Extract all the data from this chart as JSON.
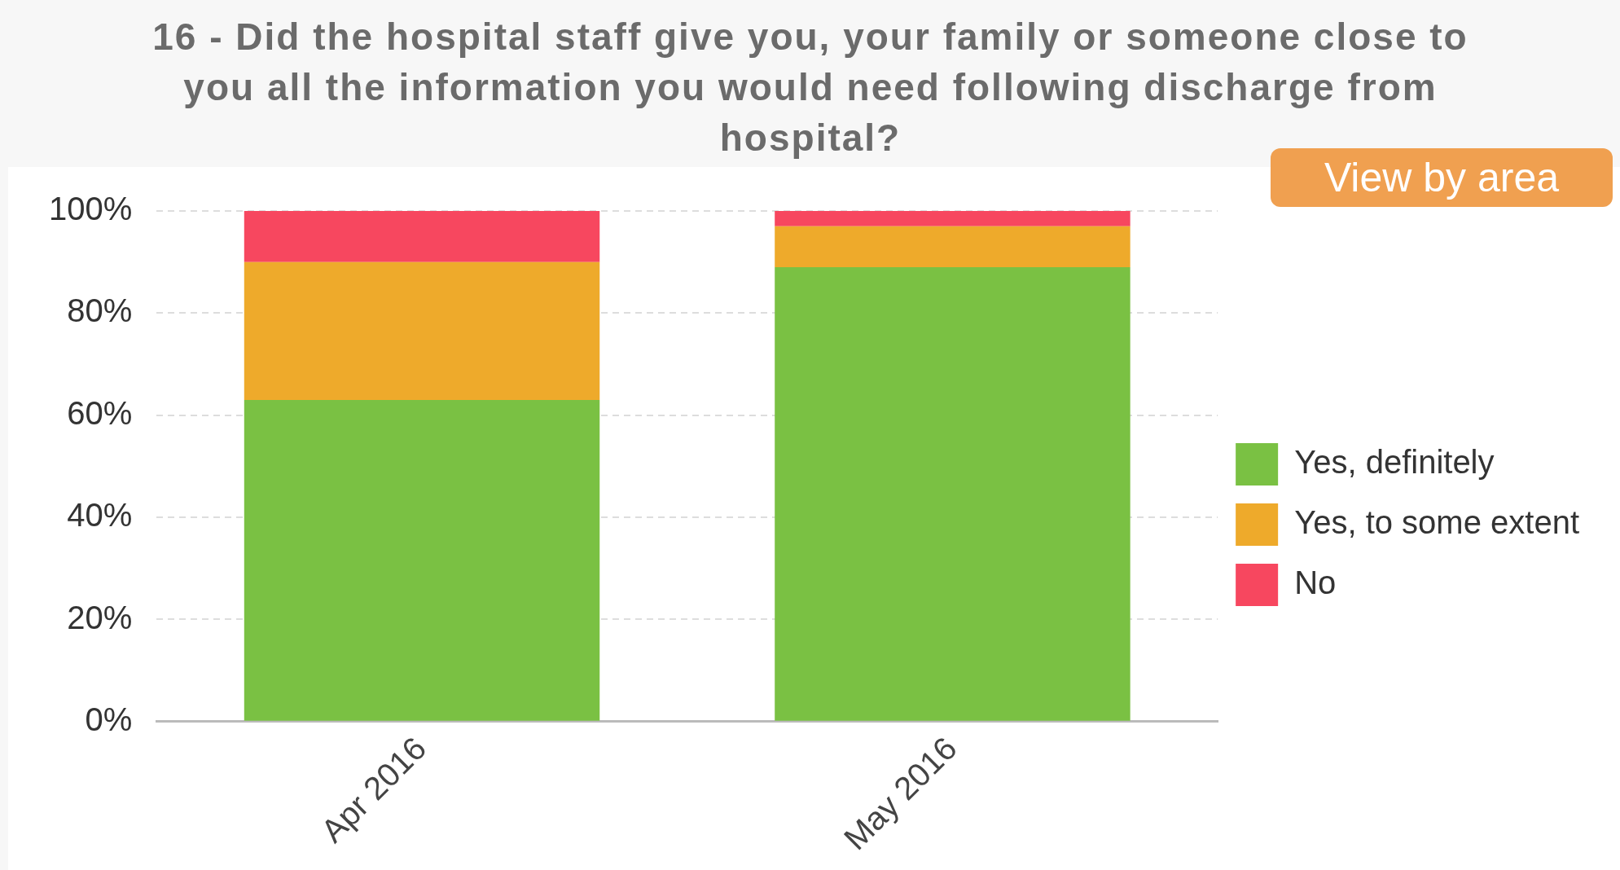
{
  "chart_data": {
    "type": "bar",
    "title": "16 - Did the hospital staff give you, your family or someone close to you all the information you would need following discharge from hospital?",
    "categories": [
      "Apr 2016",
      "May 2016"
    ],
    "series": [
      {
        "name": "Yes, definitely",
        "color": "#7ac143",
        "values": [
          63,
          89
        ]
      },
      {
        "name": "Yes, to some extent",
        "color": "#eeaa2b",
        "values": [
          27,
          8
        ]
      },
      {
        "name": "No",
        "color": "#f7475f",
        "values": [
          10,
          3
        ]
      }
    ],
    "stacked": true,
    "ylim": [
      0,
      100
    ],
    "yticks": [
      {
        "value": 0,
        "label": "0%"
      },
      {
        "value": 20,
        "label": "20%"
      },
      {
        "value": 40,
        "label": "40%"
      },
      {
        "value": 60,
        "label": "60%"
      },
      {
        "value": 80,
        "label": "80%"
      },
      {
        "value": 100,
        "label": "100%"
      }
    ],
    "grid": "y",
    "legend": "right",
    "annotations": [
      "View by area"
    ]
  }
}
